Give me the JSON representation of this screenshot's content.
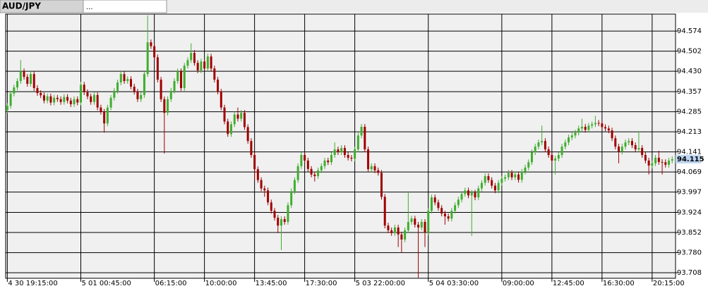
{
  "tabs": [
    "AUD/JPY",
    "..."
  ],
  "chart_data": {
    "type": "candlestick",
    "up_color": "#3fae2f",
    "down_color": "#a00000",
    "xlim": [
      -0.5,
      200
    ],
    "xticks": [
      {
        "value": 0,
        "label": "4 30 19:15:00"
      },
      {
        "value": 22,
        "label": "5 01 00:45:00"
      },
      {
        "value": 44,
        "label": "06:15:00"
      },
      {
        "value": 59,
        "label": "10:00:00"
      },
      {
        "value": 74,
        "label": "13:45:00"
      },
      {
        "value": 89,
        "label": "17:30:00"
      },
      {
        "value": 104,
        "label": "5 03 22:00:00"
      },
      {
        "value": 126,
        "label": "5 04 03:30:00"
      },
      {
        "value": 148,
        "label": "09:00:00"
      },
      {
        "value": 163,
        "label": "12:45:00"
      },
      {
        "value": 178,
        "label": "16:30:00"
      },
      {
        "value": 193,
        "label": "20:15:00"
      }
    ],
    "ylim": [
      93.688,
      94.635
    ],
    "yticks": [
      94.574,
      94.502,
      {
        "value": 94.43,
        "label": "94.430"
      },
      94.357,
      94.285,
      94.213,
      94.141,
      94.069,
      93.997,
      93.924,
      93.852,
      {
        "value": 93.78,
        "label": "93.780"
      },
      93.708
    ],
    "last_price": 94.115,
    "grid": true,
    "open": [
      94.29,
      94.306,
      94.35,
      94.372,
      94.395,
      94.43,
      94.41,
      94.385,
      94.42,
      94.37,
      94.352,
      94.344,
      94.325,
      94.34,
      94.318,
      94.335,
      94.33,
      94.32,
      94.338,
      94.325,
      94.312,
      94.33,
      94.318,
      94.382,
      94.355,
      94.34,
      94.32,
      94.345,
      94.3,
      94.285,
      94.243,
      94.3,
      94.335,
      94.36,
      94.39,
      94.42,
      94.395,
      94.402,
      94.375,
      94.357,
      94.33,
      94.345,
      94.42,
      94.534,
      94.52,
      94.48,
      94.4,
      94.33,
      94.281,
      94.33,
      94.36,
      94.395,
      94.43,
      94.37,
      94.45,
      94.47,
      94.496,
      94.46,
      94.433,
      94.465,
      94.44,
      94.483,
      94.44,
      94.4,
      94.357,
      94.3,
      94.25,
      94.205,
      94.24,
      94.275,
      94.26,
      94.281,
      94.23,
      94.18,
      94.13,
      94.079,
      94.04,
      94.01,
      94.003,
      93.96,
      93.93,
      93.905,
      93.877,
      93.9,
      93.89,
      93.95,
      94.0,
      94.04,
      94.09,
      94.13,
      94.11,
      94.08,
      94.06,
      94.054,
      94.075,
      94.09,
      94.11,
      94.104,
      94.13,
      94.15,
      94.14,
      94.155,
      94.13,
      94.12,
      94.117,
      94.15,
      94.2,
      94.231,
      94.15,
      94.079,
      94.09,
      94.075,
      94.066,
      93.98,
      93.877,
      93.86,
      93.85,
      93.87,
      93.845,
      93.827,
      93.86,
      93.89,
      93.902,
      93.88,
      93.87,
      93.89,
      93.852,
      93.93,
      93.978,
      93.96,
      93.94,
      93.92,
      93.91,
      93.902,
      93.93,
      93.95,
      93.97,
      93.99,
      94.003,
      93.985,
      93.995,
      93.978,
      94.01,
      94.03,
      94.054,
      94.04,
      94.02,
      94.003,
      94.03,
      94.045,
      94.05,
      94.066,
      94.05,
      94.06,
      94.041,
      94.07,
      94.085,
      94.104,
      94.14,
      94.16,
      94.175,
      94.18,
      94.15,
      94.13,
      94.11,
      94.117,
      94.13,
      94.16,
      94.175,
      94.193,
      94.2,
      94.21,
      94.225,
      94.231,
      94.22,
      94.235,
      94.24,
      94.245,
      94.243,
      94.23,
      94.225,
      94.218,
      94.19,
      94.16,
      94.142,
      94.16,
      94.175,
      94.18,
      94.165,
      94.15,
      94.155,
      94.13,
      94.11,
      94.092,
      94.1,
      94.12,
      94.105,
      94.104,
      94.095,
      94.11
    ],
    "high": [
      94.316,
      94.36,
      94.382,
      94.405,
      94.47,
      94.44,
      94.42,
      94.43,
      94.43,
      94.38,
      94.362,
      94.354,
      94.35,
      94.35,
      94.345,
      94.345,
      94.34,
      94.348,
      94.348,
      94.335,
      94.34,
      94.34,
      94.392,
      94.392,
      94.365,
      94.35,
      94.355,
      94.355,
      94.31,
      94.295,
      94.31,
      94.345,
      94.37,
      94.4,
      94.43,
      94.43,
      94.412,
      94.412,
      94.385,
      94.367,
      94.355,
      94.43,
      94.63,
      94.544,
      94.53,
      94.49,
      94.41,
      94.34,
      94.34,
      94.37,
      94.405,
      94.44,
      94.44,
      94.46,
      94.48,
      94.53,
      94.506,
      94.47,
      94.475,
      94.475,
      94.493,
      94.493,
      94.45,
      94.41,
      94.367,
      94.31,
      94.26,
      94.25,
      94.285,
      94.3,
      94.291,
      94.291,
      94.24,
      94.19,
      94.14,
      94.089,
      94.05,
      94.02,
      94.013,
      93.97,
      93.94,
      93.915,
      93.91,
      93.91,
      93.96,
      94.01,
      94.05,
      94.1,
      94.14,
      94.14,
      94.12,
      94.09,
      94.07,
      94.085,
      94.1,
      94.12,
      94.12,
      94.14,
      94.175,
      94.16,
      94.165,
      94.165,
      94.14,
      94.13,
      94.16,
      94.21,
      94.241,
      94.241,
      94.16,
      94.1,
      94.1,
      94.085,
      94.076,
      93.99,
      93.887,
      93.87,
      93.88,
      93.88,
      93.855,
      93.87,
      94.0,
      93.912,
      93.912,
      93.89,
      93.9,
      93.9,
      93.94,
      93.988,
      93.988,
      93.97,
      93.95,
      93.93,
      93.92,
      93.94,
      93.96,
      93.98,
      94.0,
      94.013,
      94.013,
      94.005,
      94.005,
      94.02,
      94.04,
      94.064,
      94.064,
      94.05,
      94.03,
      94.04,
      94.055,
      94.06,
      94.076,
      94.076,
      94.07,
      94.07,
      94.08,
      94.095,
      94.114,
      94.15,
      94.17,
      94.185,
      94.235,
      94.19,
      94.16,
      94.14,
      94.127,
      94.14,
      94.17,
      94.185,
      94.203,
      94.21,
      94.22,
      94.235,
      94.26,
      94.241,
      94.245,
      94.25,
      94.27,
      94.255,
      94.253,
      94.24,
      94.235,
      94.228,
      94.2,
      94.17,
      94.17,
      94.185,
      94.19,
      94.19,
      94.175,
      94.215,
      94.165,
      94.14,
      94.12,
      94.11,
      94.13,
      94.145,
      94.115,
      94.114,
      94.12,
      94.125
    ],
    "low": [
      94.28,
      94.296,
      94.34,
      94.362,
      94.385,
      94.4,
      94.375,
      94.375,
      94.36,
      94.342,
      94.334,
      94.315,
      94.315,
      94.308,
      94.308,
      94.32,
      94.31,
      94.31,
      94.315,
      94.302,
      94.302,
      94.308,
      94.308,
      94.345,
      94.33,
      94.31,
      94.31,
      94.29,
      94.275,
      94.21,
      94.233,
      94.29,
      94.325,
      94.35,
      94.38,
      94.385,
      94.385,
      94.365,
      94.347,
      94.32,
      94.32,
      94.335,
      94.41,
      94.51,
      94.47,
      94.39,
      94.32,
      94.135,
      94.271,
      94.32,
      94.35,
      94.385,
      94.36,
      94.36,
      94.44,
      94.46,
      94.45,
      94.423,
      94.423,
      94.43,
      94.43,
      94.43,
      94.39,
      94.347,
      94.29,
      94.24,
      94.195,
      94.195,
      94.23,
      94.25,
      94.25,
      94.22,
      94.17,
      94.12,
      94.04,
      94.03,
      94.0,
      93.98,
      93.95,
      93.92,
      93.895,
      93.85,
      93.789,
      93.88,
      93.88,
      93.94,
      93.99,
      94.03,
      94.08,
      94.1,
      94.07,
      94.05,
      94.035,
      94.044,
      94.065,
      94.08,
      94.094,
      94.094,
      94.12,
      94.13,
      94.13,
      94.12,
      94.11,
      94.107,
      94.107,
      94.14,
      94.19,
      94.14,
      94.069,
      94.069,
      94.065,
      94.056,
      93.97,
      93.867,
      93.85,
      93.84,
      93.84,
      93.8,
      93.78,
      93.817,
      93.85,
      93.88,
      93.87,
      93.69,
      93.86,
      93.8,
      93.842,
      93.92,
      93.95,
      93.93,
      93.91,
      93.88,
      93.892,
      93.892,
      93.92,
      93.94,
      93.96,
      93.98,
      93.975,
      93.84,
      93.968,
      93.968,
      94.0,
      94.02,
      94.03,
      94.01,
      93.993,
      93.993,
      94.02,
      94.035,
      94.04,
      94.04,
      94.04,
      94.031,
      94.031,
      94.06,
      94.075,
      94.094,
      94.13,
      94.15,
      94.165,
      94.14,
      94.12,
      94.1,
      94.06,
      94.107,
      94.12,
      94.15,
      94.165,
      94.183,
      94.19,
      94.2,
      94.215,
      94.21,
      94.21,
      94.225,
      94.23,
      94.233,
      94.22,
      94.215,
      94.208,
      94.18,
      94.15,
      94.1,
      94.132,
      94.15,
      94.165,
      94.155,
      94.14,
      94.14,
      94.12,
      94.1,
      94.06,
      94.082,
      94.09,
      94.095,
      94.06,
      94.085,
      94.085,
      94.1
    ],
    "close": [
      94.306,
      94.35,
      94.372,
      94.395,
      94.43,
      94.41,
      94.385,
      94.42,
      94.37,
      94.352,
      94.344,
      94.325,
      94.34,
      94.318,
      94.335,
      94.33,
      94.32,
      94.338,
      94.325,
      94.312,
      94.33,
      94.318,
      94.382,
      94.355,
      94.34,
      94.32,
      94.345,
      94.3,
      94.285,
      94.243,
      94.3,
      94.335,
      94.36,
      94.39,
      94.42,
      94.395,
      94.402,
      94.375,
      94.357,
      94.33,
      94.345,
      94.42,
      94.534,
      94.52,
      94.48,
      94.4,
      94.33,
      94.281,
      94.33,
      94.36,
      94.395,
      94.43,
      94.37,
      94.45,
      94.47,
      94.496,
      94.46,
      94.433,
      94.465,
      94.44,
      94.483,
      94.44,
      94.4,
      94.357,
      94.3,
      94.25,
      94.205,
      94.24,
      94.275,
      94.26,
      94.281,
      94.23,
      94.18,
      94.13,
      94.079,
      94.04,
      94.01,
      94.003,
      93.96,
      93.93,
      93.905,
      93.877,
      93.9,
      93.89,
      93.95,
      94.0,
      94.04,
      94.09,
      94.13,
      94.11,
      94.08,
      94.06,
      94.054,
      94.075,
      94.09,
      94.11,
      94.104,
      94.13,
      94.15,
      94.14,
      94.155,
      94.13,
      94.12,
      94.117,
      94.15,
      94.2,
      94.231,
      94.15,
      94.079,
      94.09,
      94.075,
      94.066,
      93.98,
      93.877,
      93.86,
      93.85,
      93.87,
      93.845,
      93.827,
      93.86,
      93.89,
      93.902,
      93.88,
      93.87,
      93.89,
      93.852,
      93.93,
      93.978,
      93.96,
      93.94,
      93.92,
      93.91,
      93.902,
      93.93,
      93.95,
      93.97,
      93.99,
      94.003,
      93.985,
      93.995,
      93.978,
      94.01,
      94.03,
      94.054,
      94.04,
      94.02,
      94.003,
      94.03,
      94.045,
      94.05,
      94.066,
      94.05,
      94.06,
      94.041,
      94.07,
      94.085,
      94.104,
      94.14,
      94.16,
      94.175,
      94.18,
      94.15,
      94.13,
      94.11,
      94.117,
      94.13,
      94.16,
      94.175,
      94.193,
      94.2,
      94.21,
      94.225,
      94.231,
      94.22,
      94.235,
      94.24,
      94.245,
      94.243,
      94.23,
      94.225,
      94.218,
      94.19,
      94.16,
      94.142,
      94.16,
      94.175,
      94.18,
      94.165,
      94.15,
      94.155,
      94.13,
      94.11,
      94.092,
      94.1,
      94.12,
      94.105,
      94.104,
      94.095,
      94.11,
      94.115
    ]
  }
}
